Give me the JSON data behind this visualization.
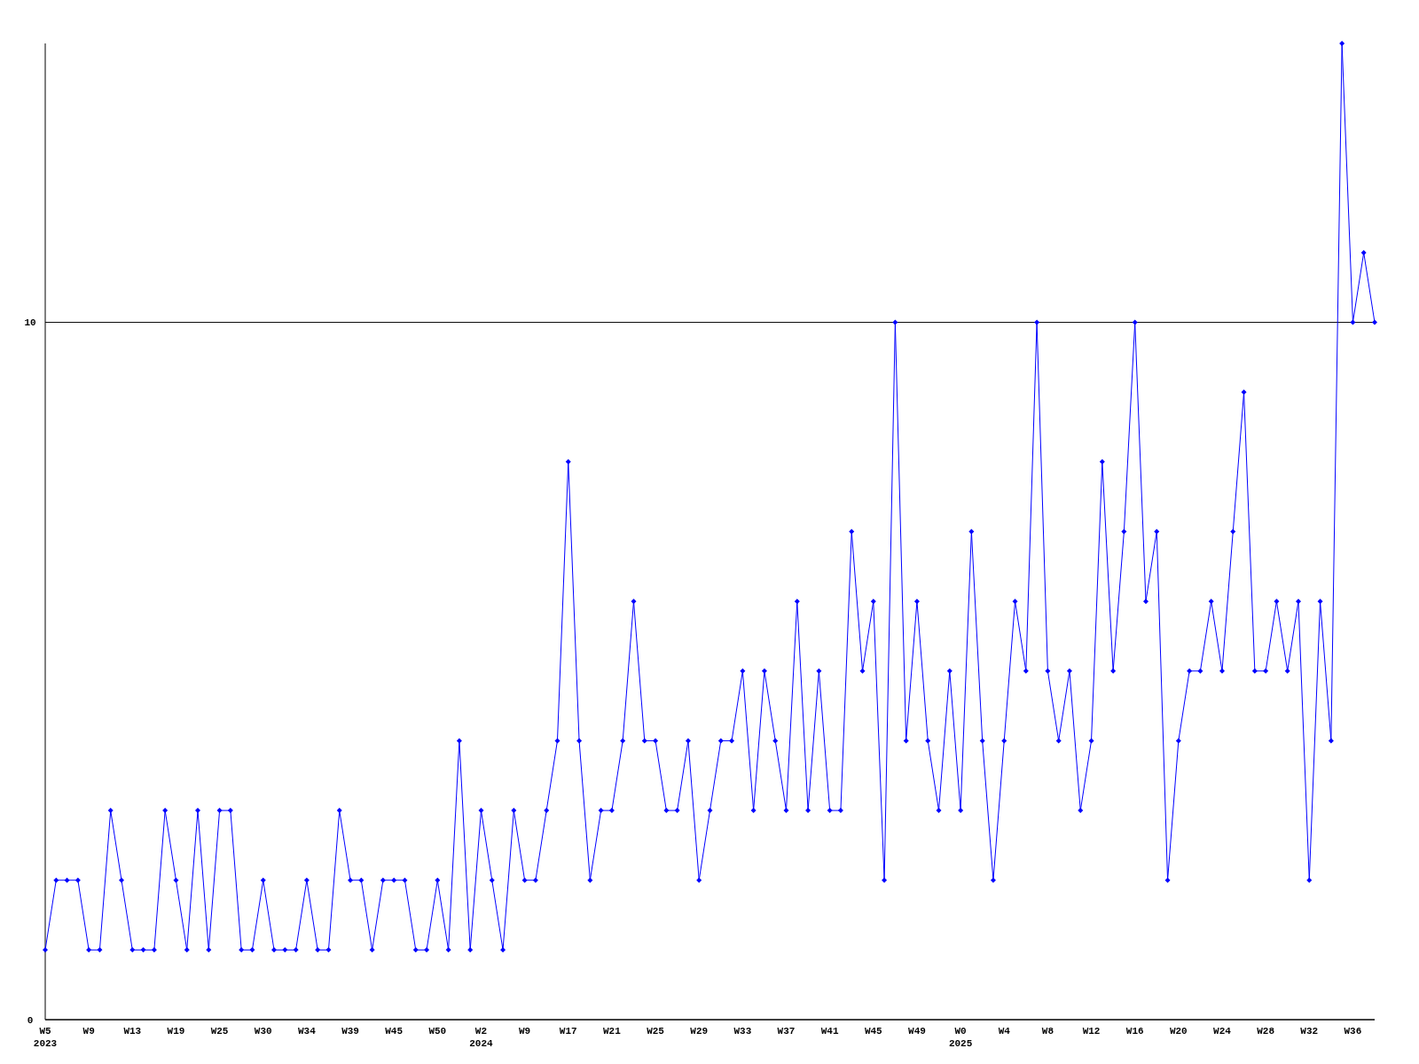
{
  "chart_data": {
    "type": "line",
    "categories": [
      "W5\n2023",
      null,
      null,
      null,
      "W9",
      null,
      null,
      null,
      "W13",
      null,
      null,
      null,
      "W19",
      null,
      null,
      null,
      "W25",
      null,
      null,
      null,
      "W30",
      null,
      null,
      null,
      "W34",
      null,
      null,
      null,
      "W39",
      null,
      null,
      null,
      "W45",
      null,
      null,
      null,
      "W50",
      null,
      null,
      null,
      "W2\n2024",
      null,
      null,
      null,
      "W9",
      null,
      null,
      null,
      "W17",
      null,
      null,
      null,
      "W21",
      null,
      null,
      null,
      "W25",
      null,
      null,
      null,
      "W29",
      null,
      null,
      null,
      "W33",
      null,
      null,
      null,
      "W37",
      null,
      null,
      null,
      "W41",
      null,
      null,
      null,
      "W45",
      null,
      null,
      null,
      "W49",
      null,
      null,
      null,
      "W0\n2025",
      null,
      null,
      null,
      "W4",
      null,
      null,
      null,
      "W8",
      null,
      null,
      null,
      "W12",
      null,
      null,
      null,
      "W16",
      null,
      null,
      null,
      "W20",
      null,
      null,
      null,
      "W24",
      null,
      null,
      null,
      "W28",
      null,
      null,
      null,
      "W32",
      null,
      null,
      null,
      "W36",
      null,
      null
    ],
    "series": [
      {
        "color": "#0000ff",
        "values": [
          1,
          2,
          2,
          2,
          1,
          1,
          3,
          2,
          1,
          1,
          1,
          3,
          2,
          1,
          3,
          1,
          3,
          3,
          1,
          1,
          2,
          1,
          1,
          1,
          2,
          1,
          1,
          3,
          2,
          2,
          1,
          2,
          2,
          2,
          1,
          1,
          2,
          1,
          4,
          1,
          3,
          2,
          1,
          3,
          2,
          2,
          3,
          4,
          8,
          4,
          2,
          3,
          3,
          4,
          6,
          4,
          4,
          3,
          3,
          4,
          2,
          3,
          4,
          4,
          5,
          3,
          5,
          4,
          3,
          6,
          3,
          5,
          3,
          3,
          7,
          5,
          6,
          2,
          10,
          4,
          6,
          4,
          3,
          5,
          3,
          7,
          4,
          2,
          4,
          6,
          5,
          10,
          5,
          4,
          5,
          3,
          4,
          8,
          5,
          7,
          10,
          6,
          7,
          2,
          4,
          5,
          5,
          6,
          5,
          7,
          9,
          5,
          5,
          6,
          5,
          6,
          2,
          6,
          4,
          14,
          10,
          11,
          10
        ]
      }
    ],
    "ylim": [
      0,
      14
    ],
    "yticks": [
      0,
      10
    ],
    "grid": "y",
    "marker": "diamond",
    "line_style": "solid"
  }
}
